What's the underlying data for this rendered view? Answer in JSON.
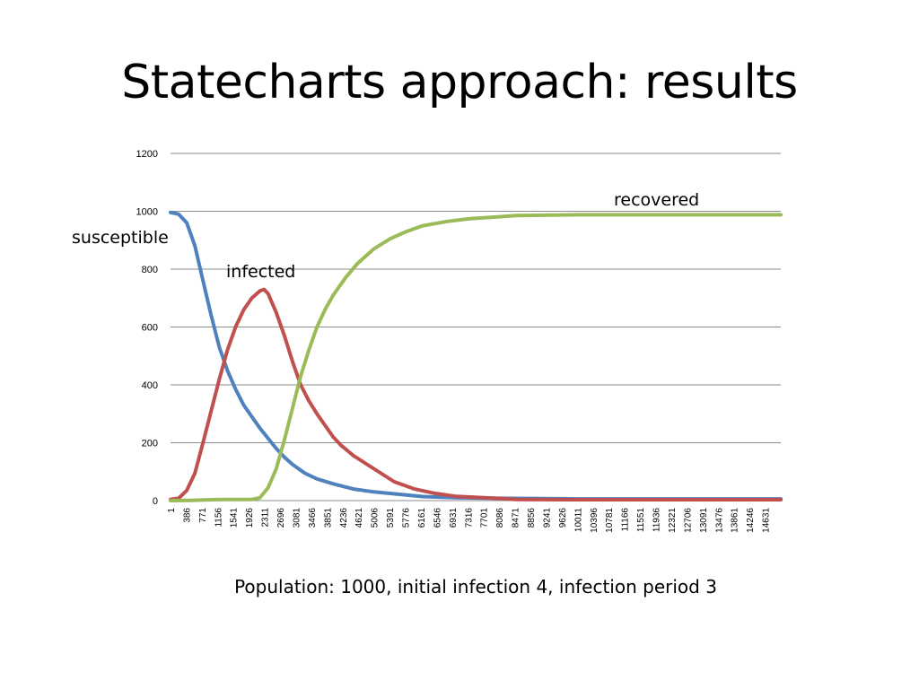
{
  "slide": {
    "title": "Statecharts approach: results",
    "caption": "Population: 1000, initial infection 4, infection period 3"
  },
  "chart_data": {
    "type": "line",
    "title": "",
    "xlabel": "",
    "ylabel": "",
    "ylim": [
      0,
      1200
    ],
    "xlim": [
      1,
      15000
    ],
    "yticks": [
      0,
      200,
      400,
      600,
      800,
      1000,
      1200
    ],
    "xticks": [
      "1",
      "386",
      "771",
      "1156",
      "1541",
      "1926",
      "2311",
      "2696",
      "3081",
      "3466",
      "3851",
      "4236",
      "4621",
      "5006",
      "5391",
      "5776",
      "6161",
      "6546",
      "6931",
      "7316",
      "7701",
      "8086",
      "8471",
      "8856",
      "9241",
      "9626",
      "10011",
      "10396",
      "10781",
      "11166",
      "11551",
      "11936",
      "12321",
      "12706",
      "13091",
      "13476",
      "13861",
      "14246",
      "14631"
    ],
    "grid": true,
    "legend": "none",
    "series": [
      {
        "name": "susceptible",
        "color": "#4F81BD",
        "x": [
          1,
          200,
          400,
          600,
          800,
          1000,
          1200,
          1400,
          1600,
          1800,
          2000,
          2200,
          2400,
          2600,
          2800,
          3000,
          3300,
          3600,
          4000,
          4500,
          5000,
          5600,
          6200,
          7000,
          8000,
          10000,
          12000,
          15000
        ],
        "y": [
          996,
          990,
          960,
          880,
          760,
          640,
          530,
          450,
          385,
          330,
          290,
          250,
          215,
          180,
          150,
          125,
          95,
          75,
          58,
          40,
          30,
          22,
          14,
          10,
          8,
          6,
          6,
          6
        ]
      },
      {
        "name": "infected",
        "color": "#C0504D",
        "x": [
          1,
          200,
          400,
          600,
          800,
          1000,
          1200,
          1400,
          1600,
          1800,
          2000,
          2200,
          2300,
          2400,
          2600,
          2800,
          3000,
          3200,
          3400,
          3600,
          3800,
          4000,
          4200,
          4500,
          5000,
          5500,
          6000,
          6500,
          7000,
          7700,
          8000,
          8500,
          10000,
          15000
        ],
        "y": [
          4,
          8,
          35,
          95,
          200,
          310,
          420,
          520,
          600,
          660,
          700,
          725,
          730,
          715,
          650,
          570,
          480,
          400,
          345,
          300,
          260,
          220,
          190,
          155,
          110,
          65,
          40,
          25,
          15,
          10,
          8,
          4,
          3,
          3
        ]
      },
      {
        "name": "recovered",
        "color": "#9BBB59",
        "x": [
          1,
          500,
          1000,
          1500,
          2000,
          2200,
          2400,
          2600,
          2800,
          3000,
          3200,
          3400,
          3600,
          3800,
          4000,
          4300,
          4600,
          5000,
          5400,
          5800,
          6200,
          6800,
          7400,
          8000,
          8500,
          10000,
          12000,
          15000
        ],
        "y": [
          0,
          1,
          3,
          4,
          4,
          10,
          45,
          110,
          210,
          320,
          430,
          520,
          600,
          660,
          710,
          770,
          820,
          870,
          905,
          930,
          950,
          965,
          975,
          980,
          985,
          988,
          988,
          988
        ]
      }
    ],
    "annotations": [
      {
        "text": "recovered",
        "series": "recovered"
      },
      {
        "text": "susceptible",
        "series": "susceptible"
      },
      {
        "text": "infected",
        "series": "infected"
      }
    ]
  }
}
